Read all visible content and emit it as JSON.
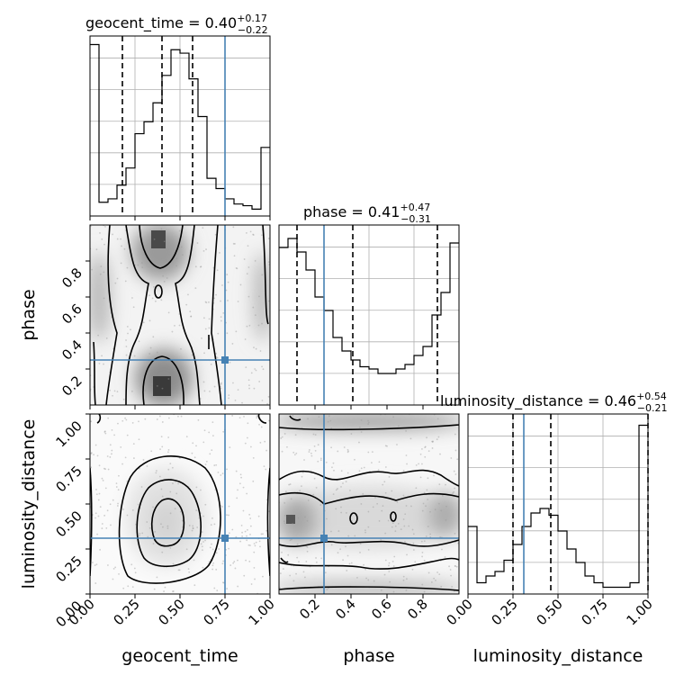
{
  "chart_data": {
    "type": "corner",
    "parameters": [
      "geocent_time",
      "phase",
      "luminosity_distance"
    ],
    "truth_color": "#4682b4",
    "truths": {
      "geocent_time": 0.75,
      "phase": 0.25,
      "luminosity_distance": 0.31
    },
    "titles": [
      {
        "param": "geocent_time",
        "text": "geocent_time = 0.40",
        "plus": "+0.17",
        "minus": "−0.22"
      },
      {
        "param": "phase",
        "text": "phase = 0.41",
        "plus": "+0.47",
        "minus": "−0.31"
      },
      {
        "param": "luminosity_distance",
        "text": "luminosity_distance = 0.46",
        "plus": "+0.54",
        "minus": "−0.21"
      }
    ],
    "axis_ranges": {
      "geocent_time": [
        0.0,
        1.0
      ],
      "phase": [
        0.0,
        1.0
      ],
      "luminosity_distance": [
        0.0,
        1.0
      ]
    },
    "ticks": {
      "geocent_time": [
        "0.00",
        "0.25",
        "0.50",
        "0.75",
        "1.00"
      ],
      "phase_x": [
        "0.2",
        "0.4",
        "0.6",
        "0.8"
      ],
      "phase_y": [
        "0.2",
        "0.4",
        "0.6",
        "0.8"
      ],
      "luminosity_distance": [
        "0.00",
        "0.25",
        "0.50",
        "0.75",
        "1.00"
      ]
    },
    "histograms": [
      {
        "param": "geocent_time",
        "counts": [
          100,
          8,
          10,
          18,
          28,
          48,
          55,
          66,
          82,
          97,
          95,
          80,
          58,
          22,
          16,
          10,
          7,
          6,
          4,
          40
        ],
        "ylim": [
          0,
          105
        ],
        "quantiles": [
          0.18,
          0.4,
          0.57
        ]
      },
      {
        "param": "phase",
        "counts": [
          70,
          74,
          68,
          60,
          48,
          42,
          30,
          24,
          20,
          17,
          16,
          14,
          14,
          16,
          18,
          22,
          26,
          40,
          50,
          72
        ],
        "ylim": [
          0,
          80
        ],
        "quantiles": [
          0.1,
          0.41,
          0.88
        ]
      },
      {
        "param": "luminosity_distance",
        "counts": [
          30,
          5,
          8,
          10,
          15,
          22,
          30,
          36,
          38,
          35,
          28,
          20,
          14,
          8,
          5,
          3,
          3,
          3,
          5,
          75
        ],
        "ylim": [
          0,
          80
        ],
        "quantiles": [
          0.25,
          0.46,
          1.0
        ]
      }
    ]
  }
}
